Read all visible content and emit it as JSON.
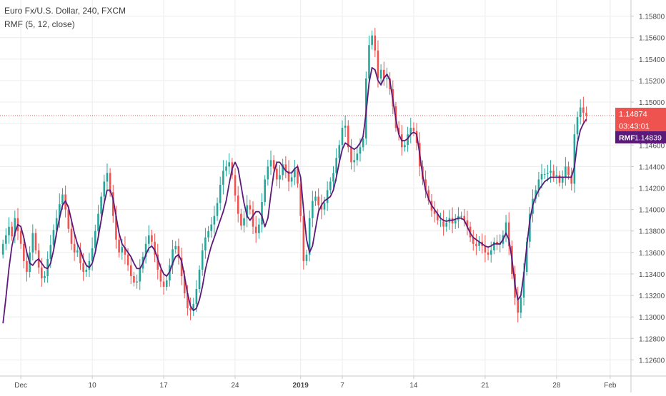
{
  "header": {
    "title": "Euro Fx/U.S. Dollar, 240, FXCM",
    "indicator": "RMF (5, 12, close)"
  },
  "price_badges": {
    "last_price": "1.14874",
    "countdown": "03:43:01",
    "rmf_name": "RMF",
    "rmf_value": "1.14839"
  },
  "colors": {
    "up": "#26a69a",
    "down": "#ef5350",
    "rmf_line": "#5b1a7a",
    "price_line": "#ef5350",
    "grid": "#ececec",
    "axis_text": "#4a4a4a"
  },
  "chart_data": {
    "type": "candlestick",
    "title": "",
    "xlabel": "",
    "ylabel": "",
    "ylim": [
      1.1245,
      1.1595
    ],
    "grid": true,
    "y_ticks": [
      "1.12600",
      "1.12800",
      "1.13000",
      "1.13200",
      "1.13400",
      "1.13600",
      "1.13800",
      "1.14000",
      "1.14200",
      "1.14400",
      "1.14600",
      "1.14800",
      "1.15000",
      "1.15200",
      "1.15400",
      "1.15600",
      "1.15800"
    ],
    "x_ticks": [
      {
        "label": "Dec",
        "x": 7,
        "bold": false
      },
      {
        "label": "10",
        "x": 31,
        "bold": false
      },
      {
        "label": "17",
        "x": 55,
        "bold": false
      },
      {
        "label": "24",
        "x": 79,
        "bold": false
      },
      {
        "label": "2019",
        "x": 101,
        "bold": true
      },
      {
        "label": "7",
        "x": 115,
        "bold": false
      },
      {
        "label": "14",
        "x": 139,
        "bold": false
      },
      {
        "label": "21",
        "x": 163,
        "bold": false
      },
      {
        "label": "28",
        "x": 187,
        "bold": false
      },
      {
        "label": "Feb",
        "x": 205,
        "bold": false
      }
    ],
    "last_price": 1.14874,
    "series": [
      {
        "name": "Euro Fx/U.S. Dollar",
        "kind": "candles",
        "close": [
          1.1368,
          1.1376,
          1.1384,
          1.1375,
          1.1392,
          1.138,
          1.1368,
          1.1352,
          1.1342,
          1.136,
          1.1378,
          1.1362,
          1.1346,
          1.1336,
          1.1338,
          1.1354,
          1.1367,
          1.1381,
          1.1392,
          1.1405,
          1.1414,
          1.14,
          1.1382,
          1.1368,
          1.136,
          1.1362,
          1.135,
          1.1342,
          1.1344,
          1.1352,
          1.1364,
          1.138,
          1.1396,
          1.1412,
          1.1426,
          1.1434,
          1.1416,
          1.1394,
          1.1372,
          1.136,
          1.1365,
          1.1358,
          1.1348,
          1.1338,
          1.1332,
          1.1333,
          1.1345,
          1.1356,
          1.1368,
          1.1376,
          1.137,
          1.1358,
          1.1344,
          1.1333,
          1.1328,
          1.1334,
          1.1348,
          1.1363,
          1.1366,
          1.1355,
          1.1338,
          1.1322,
          1.1308,
          1.1306,
          1.1312,
          1.1326,
          1.1344,
          1.1362,
          1.1374,
          1.138,
          1.1386,
          1.1394,
          1.1406,
          1.1423,
          1.1436,
          1.144,
          1.1444,
          1.1432,
          1.1413,
          1.1396,
          1.1385,
          1.1392,
          1.1404,
          1.14,
          1.1384,
          1.1378,
          1.1386,
          1.1407,
          1.1428,
          1.144,
          1.1446,
          1.1438,
          1.1428,
          1.1432,
          1.1442,
          1.1436,
          1.1426,
          1.143,
          1.1438,
          1.1424,
          1.1394,
          1.1352,
          1.1358,
          1.1392,
          1.1408,
          1.1412,
          1.1404,
          1.14,
          1.1406,
          1.1418,
          1.1426,
          1.1434,
          1.1448,
          1.146,
          1.1476,
          1.1478,
          1.1458,
          1.1444,
          1.1446,
          1.1452,
          1.1458,
          1.1466,
          1.1522,
          1.1553,
          1.1562,
          1.1548,
          1.1522,
          1.153,
          1.1522,
          1.1522,
          1.1512,
          1.1496,
          1.1476,
          1.147,
          1.1458,
          1.146,
          1.147,
          1.1476,
          1.1473,
          1.1462,
          1.144,
          1.1428,
          1.1418,
          1.1408,
          1.1399,
          1.1396,
          1.139,
          1.139,
          1.1384,
          1.1388,
          1.1392,
          1.1387,
          1.139,
          1.1394,
          1.1394,
          1.139,
          1.1384,
          1.1374,
          1.1368,
          1.1366,
          1.137,
          1.1366,
          1.136,
          1.1358,
          1.1362,
          1.137,
          1.1368,
          1.1368,
          1.1376,
          1.1388,
          1.1366,
          1.134,
          1.1318,
          1.1304,
          1.1318,
          1.1342,
          1.137,
          1.1396,
          1.141,
          1.1418,
          1.1428,
          1.1433,
          1.1433,
          1.1434,
          1.1436,
          1.1431,
          1.1432,
          1.1425,
          1.143,
          1.144,
          1.1432,
          1.1424,
          1.147,
          1.1486,
          1.1495,
          1.149,
          1.1487
        ],
        "open": [
          1.1358,
          1.1368,
          1.1376,
          1.1384,
          1.1375,
          1.1392,
          1.138,
          1.1368,
          1.1352,
          1.1342,
          1.136,
          1.1378,
          1.1362,
          1.1346,
          1.1336,
          1.1338,
          1.1354,
          1.1367,
          1.1381,
          1.1392,
          1.1405,
          1.1414,
          1.14,
          1.1382,
          1.1368,
          1.136,
          1.1362,
          1.135,
          1.1342,
          1.1344,
          1.1352,
          1.1364,
          1.138,
          1.1396,
          1.1412,
          1.1426,
          1.1434,
          1.1416,
          1.1394,
          1.1372,
          1.136,
          1.1365,
          1.1358,
          1.1348,
          1.1338,
          1.1332,
          1.1333,
          1.1345,
          1.1356,
          1.1368,
          1.1376,
          1.137,
          1.1358,
          1.1344,
          1.1333,
          1.1328,
          1.1334,
          1.1348,
          1.1363,
          1.1366,
          1.1355,
          1.1338,
          1.1322,
          1.1308,
          1.1306,
          1.1312,
          1.1326,
          1.1344,
          1.1362,
          1.1374,
          1.138,
          1.1386,
          1.1394,
          1.1406,
          1.1423,
          1.1436,
          1.144,
          1.1444,
          1.1432,
          1.1413,
          1.1396,
          1.1385,
          1.1392,
          1.1404,
          1.14,
          1.1384,
          1.1378,
          1.1386,
          1.1407,
          1.1428,
          1.144,
          1.1446,
          1.1438,
          1.1428,
          1.1432,
          1.1442,
          1.1436,
          1.1426,
          1.143,
          1.1438,
          1.1424,
          1.1394,
          1.1352,
          1.1358,
          1.1392,
          1.1408,
          1.1412,
          1.1404,
          1.14,
          1.1406,
          1.1418,
          1.1426,
          1.1434,
          1.1448,
          1.146,
          1.1476,
          1.1478,
          1.1458,
          1.1444,
          1.1446,
          1.1452,
          1.1458,
          1.1466,
          1.1522,
          1.1553,
          1.1562,
          1.1548,
          1.1522,
          1.153,
          1.1522,
          1.1522,
          1.1512,
          1.1496,
          1.1476,
          1.147,
          1.1458,
          1.146,
          1.147,
          1.1476,
          1.1473,
          1.1462,
          1.144,
          1.1428,
          1.1418,
          1.1408,
          1.1399,
          1.1396,
          1.139,
          1.139,
          1.1384,
          1.1388,
          1.1392,
          1.1387,
          1.139,
          1.1394,
          1.1394,
          1.139,
          1.1384,
          1.1374,
          1.1368,
          1.1366,
          1.137,
          1.1366,
          1.136,
          1.1358,
          1.1362,
          1.137,
          1.1368,
          1.1368,
          1.1376,
          1.1388,
          1.1366,
          1.134,
          1.1318,
          1.1304,
          1.1318,
          1.1342,
          1.137,
          1.1396,
          1.141,
          1.1418,
          1.1428,
          1.1433,
          1.1433,
          1.1434,
          1.1436,
          1.1431,
          1.1432,
          1.1425,
          1.143,
          1.144,
          1.1432,
          1.1424,
          1.147,
          1.1486,
          1.1495,
          1.149
        ]
      },
      {
        "name": "RMF",
        "kind": "line",
        "values": [
          1.1294,
          1.1318,
          1.1345,
          1.1366,
          1.1378,
          1.1386,
          1.1384,
          1.1374,
          1.136,
          1.135,
          1.1348,
          1.1352,
          1.1354,
          1.135,
          1.1346,
          1.1345,
          1.135,
          1.1362,
          1.1378,
          1.1392,
          1.1404,
          1.1408,
          1.1402,
          1.139,
          1.1378,
          1.1368,
          1.1362,
          1.1354,
          1.1348,
          1.1346,
          1.135,
          1.136,
          1.1374,
          1.139,
          1.1406,
          1.1418,
          1.1418,
          1.141,
          1.1394,
          1.1378,
          1.1368,
          1.1364,
          1.136,
          1.1356,
          1.135,
          1.1345,
          1.1345,
          1.135,
          1.1358,
          1.1364,
          1.1366,
          1.1362,
          1.1354,
          1.1346,
          1.134,
          1.1338,
          1.1342,
          1.135,
          1.1356,
          1.1358,
          1.1352,
          1.1338,
          1.1322,
          1.131,
          1.1306,
          1.1308,
          1.1316,
          1.1328,
          1.1344,
          1.1356,
          1.1366,
          1.1374,
          1.1382,
          1.139,
          1.1398,
          1.1408,
          1.1424,
          1.1438,
          1.1444,
          1.1438,
          1.1422,
          1.1406,
          1.1394,
          1.139,
          1.1394,
          1.1398,
          1.1398,
          1.1394,
          1.1384,
          1.1392,
          1.1414,
          1.1434,
          1.1444,
          1.1444,
          1.144,
          1.1436,
          1.1434,
          1.1434,
          1.1438,
          1.144,
          1.143,
          1.14,
          1.1372,
          1.136,
          1.1366,
          1.1382,
          1.1398,
          1.1404,
          1.1408,
          1.141,
          1.1412,
          1.1418,
          1.143,
          1.1444,
          1.1456,
          1.1462,
          1.146,
          1.1458,
          1.1456,
          1.1458,
          1.1462,
          1.1468,
          1.149,
          1.1518,
          1.1532,
          1.153,
          1.152,
          1.1516,
          1.1522,
          1.1526,
          1.152,
          1.1502,
          1.1484,
          1.147,
          1.1464,
          1.1464,
          1.1466,
          1.147,
          1.1472,
          1.147,
          1.1452,
          1.1432,
          1.1418,
          1.141,
          1.1404,
          1.14,
          1.1396,
          1.1392,
          1.139,
          1.1389,
          1.139,
          1.139,
          1.1391,
          1.1392,
          1.1392,
          1.139,
          1.1384,
          1.1378,
          1.1374,
          1.1372,
          1.137,
          1.1368,
          1.1366,
          1.1365,
          1.1366,
          1.1368,
          1.1368,
          1.1368,
          1.1372,
          1.1378,
          1.1372,
          1.1354,
          1.133,
          1.1316,
          1.132,
          1.134,
          1.1366,
          1.139,
          1.1404,
          1.1412,
          1.1418,
          1.1422,
          1.1426,
          1.1428,
          1.143,
          1.143,
          1.143,
          1.143,
          1.143,
          1.143,
          1.143,
          1.143,
          1.144,
          1.1462,
          1.1474,
          1.148,
          1.1484
        ]
      }
    ]
  }
}
